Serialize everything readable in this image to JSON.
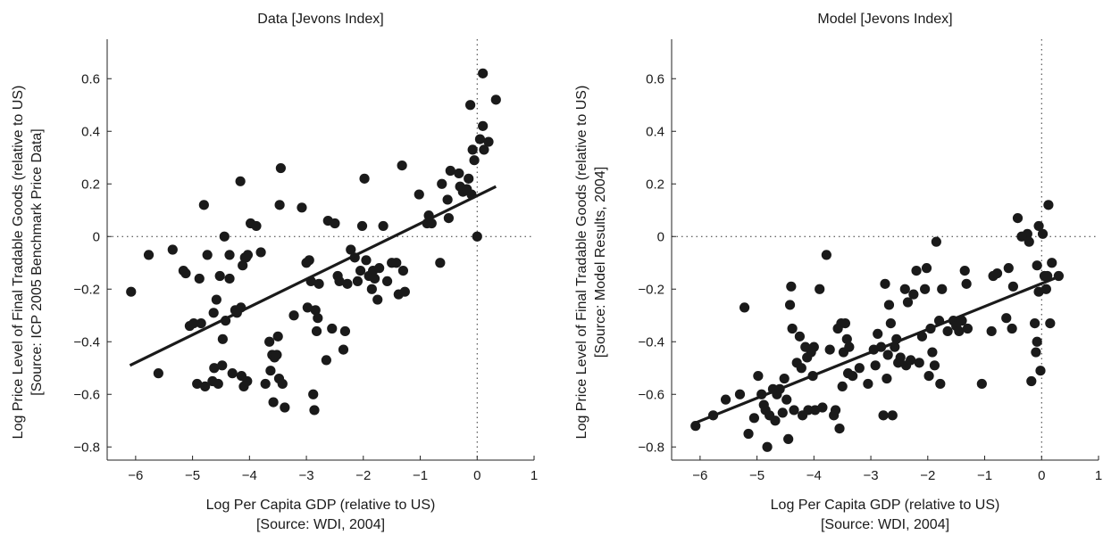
{
  "chart_data": [
    {
      "type": "scatter",
      "title": "Data [Jevons Index]",
      "xlabel": [
        "Log Per Capita GDP (relative to US)",
        "[Source: WDI, 2004]"
      ],
      "ylabel": [
        "Log Price Level of Final Tradable Goods (relative to US)",
        "[Source: ICP 2005 Benchmark Price Data]"
      ],
      "xlim": [
        -6.5,
        1.0
      ],
      "ylim": [
        -0.85,
        0.75
      ],
      "xticks": [
        -6,
        -5,
        -4,
        -3,
        -2,
        -1,
        0,
        1
      ],
      "yticks": [
        -0.8,
        -0.6,
        -0.4,
        -0.2,
        0,
        0.2,
        0.4,
        0.6
      ],
      "xtick_labels": [
        "−6",
        "−5",
        "−4",
        "−3",
        "−2",
        "−1",
        "0",
        "1"
      ],
      "ytick_labels": [
        "−0.8",
        "−0.6",
        "−0.4",
        "−0.2",
        "0",
        "0.2",
        "0.4",
        "0.6"
      ],
      "grid": false,
      "reference_lines": {
        "x": 0,
        "y": 0
      },
      "fit_line": [
        [
          -6.1,
          -0.49
        ],
        [
          0.33,
          0.19
        ]
      ],
      "points": [
        [
          -6.08,
          -0.21
        ],
        [
          -5.77,
          -0.07
        ],
        [
          -5.6,
          -0.52
        ],
        [
          -5.35,
          -0.05
        ],
        [
          -5.16,
          -0.13
        ],
        [
          -5.12,
          -0.14
        ],
        [
          -5.05,
          -0.34
        ],
        [
          -4.98,
          -0.33
        ],
        [
          -4.92,
          -0.56
        ],
        [
          -4.88,
          -0.16
        ],
        [
          -4.85,
          -0.33
        ],
        [
          -4.8,
          0.12
        ],
        [
          -4.78,
          -0.57
        ],
        [
          -4.74,
          -0.07
        ],
        [
          -4.65,
          -0.55
        ],
        [
          -4.63,
          -0.29
        ],
        [
          -4.62,
          -0.5
        ],
        [
          -4.58,
          -0.24
        ],
        [
          -4.55,
          -0.56
        ],
        [
          -4.52,
          -0.15
        ],
        [
          -4.48,
          -0.49
        ],
        [
          -4.47,
          -0.39
        ],
        [
          -4.44,
          0.0
        ],
        [
          -4.42,
          -0.32
        ],
        [
          -4.35,
          -0.07
        ],
        [
          -4.35,
          -0.16
        ],
        [
          -4.3,
          -0.52
        ],
        [
          -4.25,
          -0.28
        ],
        [
          -4.22,
          -0.29
        ],
        [
          -4.16,
          0.21
        ],
        [
          -4.15,
          -0.27
        ],
        [
          -4.14,
          -0.53
        ],
        [
          -4.12,
          -0.11
        ],
        [
          -4.1,
          -0.57
        ],
        [
          -4.08,
          -0.08
        ],
        [
          -4.06,
          -0.08
        ],
        [
          -4.04,
          -0.55
        ],
        [
          -4.03,
          -0.07
        ],
        [
          -3.98,
          0.05
        ],
        [
          -3.88,
          0.04
        ],
        [
          -3.8,
          -0.06
        ],
        [
          -3.72,
          -0.56
        ],
        [
          -3.65,
          -0.4
        ],
        [
          -3.63,
          -0.51
        ],
        [
          -3.6,
          -0.45
        ],
        [
          -3.58,
          -0.63
        ],
        [
          -3.56,
          -0.46
        ],
        [
          -3.52,
          -0.45
        ],
        [
          -3.5,
          -0.38
        ],
        [
          -3.48,
          -0.54
        ],
        [
          -3.45,
          0.26
        ],
        [
          -3.47,
          0.12
        ],
        [
          -3.42,
          -0.56
        ],
        [
          -3.38,
          -0.65
        ],
        [
          -3.22,
          -0.3
        ],
        [
          -3.08,
          0.11
        ],
        [
          -3.0,
          -0.1
        ],
        [
          -2.98,
          -0.27
        ],
        [
          -2.95,
          -0.09
        ],
        [
          -2.92,
          -0.17
        ],
        [
          -2.88,
          -0.6
        ],
        [
          -2.86,
          -0.66
        ],
        [
          -2.84,
          -0.28
        ],
        [
          -2.82,
          -0.36
        ],
        [
          -2.8,
          -0.31
        ],
        [
          -2.78,
          -0.18
        ],
        [
          -2.65,
          -0.47
        ],
        [
          -2.62,
          0.06
        ],
        [
          -2.55,
          -0.35
        ],
        [
          -2.5,
          0.05
        ],
        [
          -2.45,
          -0.15
        ],
        [
          -2.42,
          -0.17
        ],
        [
          -2.35,
          -0.43
        ],
        [
          -2.32,
          -0.36
        ],
        [
          -2.28,
          -0.18
        ],
        [
          -2.22,
          -0.05
        ],
        [
          -2.15,
          -0.08
        ],
        [
          -2.1,
          -0.17
        ],
        [
          -2.05,
          -0.13
        ],
        [
          -2.02,
          0.04
        ],
        [
          -1.98,
          0.22
        ],
        [
          -1.95,
          -0.09
        ],
        [
          -1.9,
          -0.15
        ],
        [
          -1.85,
          -0.2
        ],
        [
          -1.83,
          -0.13
        ],
        [
          -1.8,
          -0.16
        ],
        [
          -1.75,
          -0.24
        ],
        [
          -1.72,
          -0.12
        ],
        [
          -1.65,
          0.04
        ],
        [
          -1.58,
          -0.17
        ],
        [
          -1.5,
          -0.1
        ],
        [
          -1.42,
          -0.1
        ],
        [
          -1.38,
          -0.22
        ],
        [
          -1.32,
          0.27
        ],
        [
          -1.3,
          -0.13
        ],
        [
          -1.27,
          -0.21
        ],
        [
          -1.02,
          0.16
        ],
        [
          -0.88,
          0.05
        ],
        [
          -0.85,
          0.08
        ],
        [
          -0.8,
          0.05
        ],
        [
          -0.65,
          -0.1
        ],
        [
          -0.62,
          0.2
        ],
        [
          -0.52,
          0.14
        ],
        [
          -0.5,
          0.07
        ],
        [
          -0.47,
          0.25
        ],
        [
          -0.32,
          0.24
        ],
        [
          -0.3,
          0.19
        ],
        [
          -0.25,
          0.17
        ],
        [
          -0.18,
          0.18
        ],
        [
          -0.15,
          0.22
        ],
        [
          -0.12,
          0.5
        ],
        [
          -0.1,
          0.16
        ],
        [
          -0.08,
          0.33
        ],
        [
          -0.05,
          0.29
        ],
        [
          0.0,
          0.0
        ],
        [
          0.05,
          0.37
        ],
        [
          0.1,
          0.62
        ],
        [
          0.1,
          0.42
        ],
        [
          0.12,
          0.33
        ],
        [
          0.2,
          0.36
        ],
        [
          0.33,
          0.52
        ]
      ]
    },
    {
      "type": "scatter",
      "title": "Model [Jevons Index]",
      "xlabel": [
        "Log Per Capita GDP (relative to US)",
        "[Source: WDI, 2004]"
      ],
      "ylabel": [
        "Log Price Level of Final Tradable Goods (relative to US)",
        "[Source: Model Results, 2004]"
      ],
      "xlim": [
        -6.5,
        1.0
      ],
      "ylim": [
        -0.85,
        0.75
      ],
      "xticks": [
        -6,
        -5,
        -4,
        -3,
        -2,
        -1,
        0,
        1
      ],
      "yticks": [
        -0.8,
        -0.6,
        -0.4,
        -0.2,
        0,
        0.2,
        0.4,
        0.6
      ],
      "xtick_labels": [
        "−6",
        "−5",
        "−4",
        "−3",
        "−2",
        "−1",
        "0",
        "1"
      ],
      "ytick_labels": [
        "−0.8",
        "−0.6",
        "−0.4",
        "−0.2",
        "0",
        "0.2",
        "0.4",
        "0.6"
      ],
      "grid": false,
      "reference_lines": {
        "x": 0,
        "y": 0
      },
      "fit_line": [
        [
          -6.1,
          -0.71
        ],
        [
          0.33,
          -0.15
        ]
      ],
      "points": [
        [
          -6.08,
          -0.72
        ],
        [
          -5.77,
          -0.68
        ],
        [
          -5.55,
          -0.62
        ],
        [
          -5.3,
          -0.6
        ],
        [
          -5.22,
          -0.27
        ],
        [
          -5.15,
          -0.75
        ],
        [
          -5.05,
          -0.69
        ],
        [
          -4.98,
          -0.53
        ],
        [
          -4.92,
          -0.6
        ],
        [
          -4.88,
          -0.64
        ],
        [
          -4.85,
          -0.66
        ],
        [
          -4.82,
          -0.8
        ],
        [
          -4.78,
          -0.68
        ],
        [
          -4.72,
          -0.58
        ],
        [
          -4.68,
          -0.7
        ],
        [
          -4.65,
          -0.6
        ],
        [
          -4.6,
          -0.58
        ],
        [
          -4.55,
          -0.67
        ],
        [
          -4.52,
          -0.54
        ],
        [
          -4.48,
          -0.62
        ],
        [
          -4.45,
          -0.77
        ],
        [
          -4.42,
          -0.26
        ],
        [
          -4.4,
          -0.19
        ],
        [
          -4.38,
          -0.35
        ],
        [
          -4.35,
          -0.66
        ],
        [
          -4.3,
          -0.48
        ],
        [
          -4.25,
          -0.38
        ],
        [
          -4.22,
          -0.5
        ],
        [
          -4.2,
          -0.68
        ],
        [
          -4.15,
          -0.42
        ],
        [
          -4.12,
          -0.46
        ],
        [
          -4.1,
          -0.66
        ],
        [
          -4.05,
          -0.44
        ],
        [
          -4.02,
          -0.53
        ],
        [
          -4.0,
          -0.42
        ],
        [
          -3.98,
          -0.66
        ],
        [
          -3.9,
          -0.2
        ],
        [
          -3.85,
          -0.65
        ],
        [
          -3.78,
          -0.07
        ],
        [
          -3.72,
          -0.43
        ],
        [
          -3.65,
          -0.68
        ],
        [
          -3.62,
          -0.66
        ],
        [
          -3.58,
          -0.35
        ],
        [
          -3.55,
          -0.73
        ],
        [
          -3.52,
          -0.33
        ],
        [
          -3.5,
          -0.57
        ],
        [
          -3.48,
          -0.44
        ],
        [
          -3.45,
          -0.33
        ],
        [
          -3.42,
          -0.39
        ],
        [
          -3.4,
          -0.52
        ],
        [
          -3.38,
          -0.42
        ],
        [
          -3.32,
          -0.53
        ],
        [
          -3.2,
          -0.5
        ],
        [
          -3.05,
          -0.56
        ],
        [
          -2.95,
          -0.43
        ],
        [
          -2.92,
          -0.49
        ],
        [
          -2.88,
          -0.37
        ],
        [
          -2.82,
          -0.42
        ],
        [
          -2.78,
          -0.68
        ],
        [
          -2.75,
          -0.18
        ],
        [
          -2.72,
          -0.54
        ],
        [
          -2.7,
          -0.45
        ],
        [
          -2.68,
          -0.26
        ],
        [
          -2.65,
          -0.33
        ],
        [
          -2.62,
          -0.68
        ],
        [
          -2.58,
          -0.42
        ],
        [
          -2.55,
          -0.39
        ],
        [
          -2.52,
          -0.48
        ],
        [
          -2.48,
          -0.46
        ],
        [
          -2.4,
          -0.2
        ],
        [
          -2.38,
          -0.49
        ],
        [
          -2.35,
          -0.25
        ],
        [
          -2.3,
          -0.47
        ],
        [
          -2.25,
          -0.22
        ],
        [
          -2.2,
          -0.13
        ],
        [
          -2.15,
          -0.48
        ],
        [
          -2.1,
          -0.38
        ],
        [
          -2.05,
          -0.2
        ],
        [
          -2.02,
          -0.12
        ],
        [
          -1.98,
          -0.53
        ],
        [
          -1.95,
          -0.35
        ],
        [
          -1.92,
          -0.44
        ],
        [
          -1.88,
          -0.49
        ],
        [
          -1.85,
          -0.02
        ],
        [
          -1.8,
          -0.32
        ],
        [
          -1.78,
          -0.56
        ],
        [
          -1.75,
          -0.2
        ],
        [
          -1.65,
          -0.36
        ],
        [
          -1.55,
          -0.32
        ],
        [
          -1.5,
          -0.34
        ],
        [
          -1.45,
          -0.36
        ],
        [
          -1.4,
          -0.32
        ],
        [
          -1.35,
          -0.13
        ],
        [
          -1.32,
          -0.18
        ],
        [
          -1.3,
          -0.35
        ],
        [
          -1.05,
          -0.56
        ],
        [
          -0.88,
          -0.36
        ],
        [
          -0.85,
          -0.15
        ],
        [
          -0.78,
          -0.14
        ],
        [
          -0.62,
          -0.31
        ],
        [
          -0.58,
          -0.12
        ],
        [
          -0.52,
          -0.35
        ],
        [
          -0.5,
          -0.19
        ],
        [
          -0.42,
          0.07
        ],
        [
          -0.25,
          0.01
        ],
        [
          -0.22,
          -0.02
        ],
        [
          -0.18,
          -0.55
        ],
        [
          -0.12,
          -0.33
        ],
        [
          -0.1,
          -0.44
        ],
        [
          -0.08,
          -0.11
        ],
        [
          -0.05,
          0.04
        ],
        [
          -0.02,
          -0.51
        ],
        [
          0.02,
          0.01
        ],
        [
          0.05,
          -0.15
        ],
        [
          0.1,
          -0.15
        ],
        [
          0.12,
          0.12
        ],
        [
          0.18,
          -0.1
        ],
        [
          -0.05,
          -0.21
        ],
        [
          0.15,
          -0.33
        ],
        [
          0.3,
          -0.15
        ],
        [
          -0.35,
          0.0
        ],
        [
          -0.08,
          -0.4
        ],
        [
          0.08,
          -0.2
        ]
      ]
    }
  ]
}
